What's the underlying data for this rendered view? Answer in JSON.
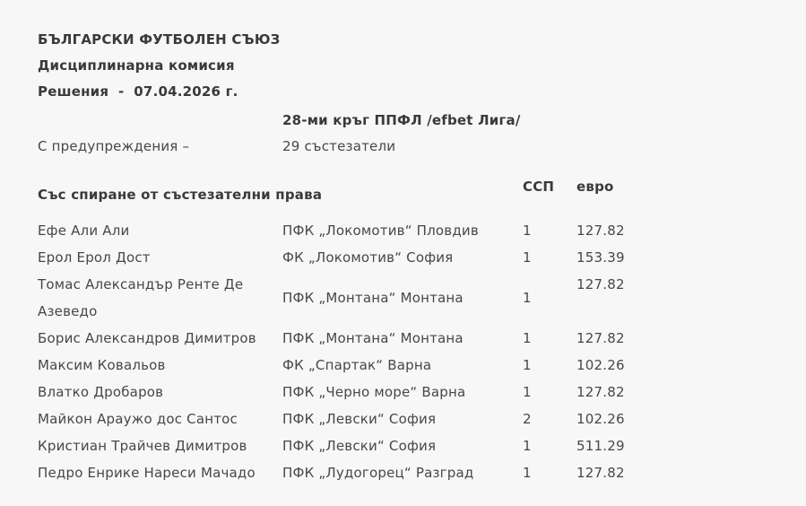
{
  "page": {
    "background_color": "#f7f7f7",
    "text_color": "#474747",
    "heading_color": "#3a3a3a"
  },
  "header": {
    "organization": "БЪЛГАРСКИ ФУТБОЛЕН СЪЮЗ",
    "commission": "Дисциплинарна комисия",
    "decisions_date_line": "Решения  -  07.04.2026 г."
  },
  "round": {
    "title": "28-ми кръг ППФЛ /efbet Лига/",
    "warnings_label": "С предупреждения –",
    "warnings_value": "29 състезатели"
  },
  "suspensions": {
    "section_title": "Със спиране от състезателни права",
    "columns": {
      "ssp": "ССП",
      "euro": "евро"
    },
    "rows": [
      {
        "player": "Ефе Али Али",
        "club": "ПФК „Локомотив“ Пловдив",
        "ssp": "1",
        "euro": "127.82"
      },
      {
        "player": "Ерол Ерол Дост",
        "club": "ФК „Локомотив“ София",
        "ssp": "1",
        "euro": "153.39"
      },
      {
        "player": "Томас Александър Ренте Де Азеведо",
        "club": "ПФК „Монтана“ Монтана",
        "ssp": "1",
        "euro": "127.82"
      },
      {
        "player": "Борис Александров Димитров",
        "club": "ПФК „Монтана“ Монтана",
        "ssp": "1",
        "euro": "127.82"
      },
      {
        "player": "Максим Ковальов",
        "club": "ФК „Спартак“ Варна",
        "ssp": "1",
        "euro": "102.26"
      },
      {
        "player": "Влатко Дробаров",
        "club": "ПФК „Черно море“ Варна",
        "ssp": "1",
        "euro": "127.82"
      },
      {
        "player": "Майкон Араужо дос Сантос",
        "club": "ПФК „Левски“ София",
        "ssp": "2",
        "euro": "102.26"
      },
      {
        "player": "Кристиан Трайчев Димитров",
        "club": "ПФК „Левски“ София",
        "ssp": "1",
        "euro": "511.29"
      },
      {
        "player": "Педро Енрике Нареси Мачадо",
        "club": "ПФК „Лудогорец“ Разград",
        "ssp": "1",
        "euro": "127.82"
      }
    ]
  }
}
